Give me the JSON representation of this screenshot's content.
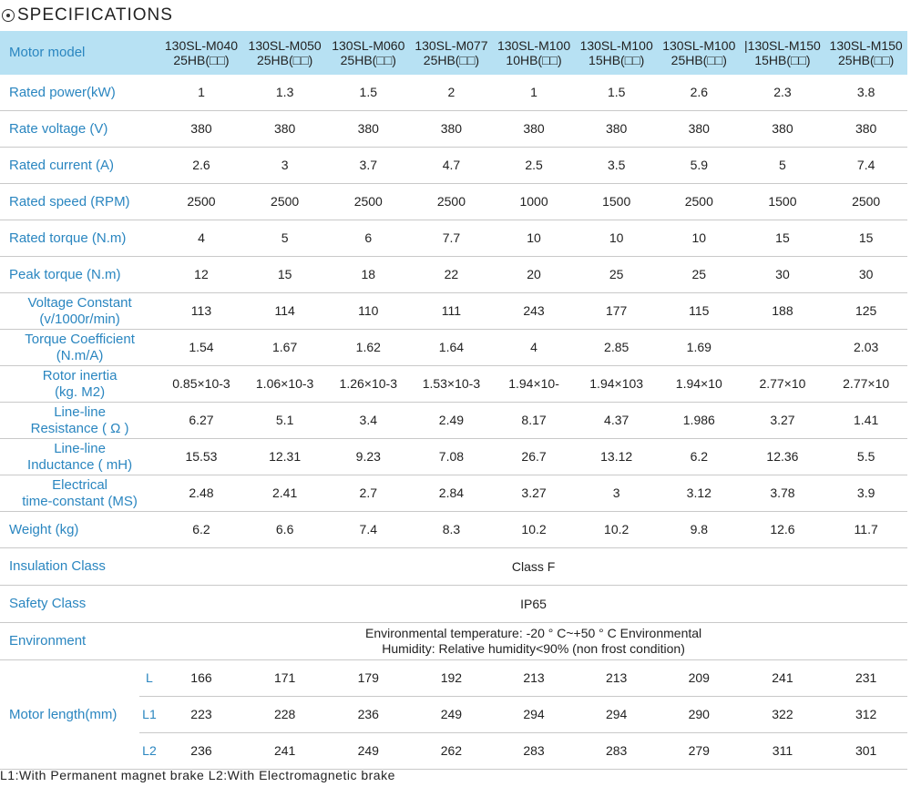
{
  "title": "SPECIFICATIONS",
  "header": {
    "label": "Motor model",
    "models": [
      [
        "130SL-M040",
        "25HB(□□)"
      ],
      [
        "130SL-M050",
        "25HB(□□)"
      ],
      [
        "130SL-M060",
        "25HB(□□)"
      ],
      [
        "130SL-M077",
        "25HB(□□)"
      ],
      [
        "130SL-M100",
        "10HB(□□)"
      ],
      [
        "130SL-M100",
        "15HB(□□)"
      ],
      [
        "130SL-M100",
        "25HB(□□)"
      ],
      [
        "|130SL-M150",
        "15HB(□□)"
      ],
      [
        "130SL-M150",
        "25HB(□□)"
      ]
    ]
  },
  "rows": [
    {
      "label": [
        "Rated power(kW)"
      ],
      "values": [
        "1",
        "1.3",
        "1.5",
        "2",
        "1",
        "1.5",
        "2.6",
        "2.3",
        "3.8"
      ]
    },
    {
      "label": [
        "Rate voltage (V)"
      ],
      "values": [
        "380",
        "380",
        "380",
        "380",
        "380",
        "380",
        "380",
        "380",
        "380"
      ]
    },
    {
      "label": [
        "Rated current (A)"
      ],
      "values": [
        "2.6",
        "3",
        "3.7",
        "4.7",
        "2.5",
        "3.5",
        "5.9",
        "5",
        "7.4"
      ]
    },
    {
      "label": [
        "Rated speed (RPM)"
      ],
      "values": [
        "2500",
        "2500",
        "2500",
        "2500",
        "1000",
        "1500",
        "2500",
        "1500",
        "2500"
      ]
    },
    {
      "label": [
        "Rated torque (N.m)"
      ],
      "values": [
        "4",
        "5",
        "6",
        "7.7",
        "10",
        "10",
        "10",
        "15",
        "15"
      ]
    },
    {
      "label": [
        "Peak torque (N.m)"
      ],
      "values": [
        "12",
        "15",
        "18",
        "22",
        "20",
        "25",
        "25",
        "30",
        "30"
      ]
    },
    {
      "label": [
        "Voltage Constant",
        "(v/1000r/min)"
      ],
      "values": [
        "113",
        "114",
        "110",
        "111",
        "243",
        "177",
        "115",
        "188",
        "125"
      ]
    },
    {
      "label": [
        "Torque Coefficient",
        "(N.m/A)"
      ],
      "values": [
        "1.54",
        "1.67",
        "1.62",
        "1.64",
        "4",
        "2.85",
        "1.69",
        "",
        "2.03"
      ]
    },
    {
      "label": [
        "Rotor inertia",
        "(kg. M2)"
      ],
      "values": [
        "0.85×10-3",
        "1.06×10-3",
        "1.26×10-3",
        "1.53×10-3",
        "1.94×10-",
        "1.94×103",
        "1.94×10",
        "2.77×10",
        "2.77×10"
      ]
    },
    {
      "label": [
        "Line-line",
        "Resistance ( Ω )"
      ],
      "values": [
        "6.27",
        "5.1",
        "3.4",
        "2.49",
        "8.17",
        "4.37",
        "1.986",
        "3.27",
        "1.41"
      ]
    },
    {
      "label": [
        "Line-line",
        "Inductance ( mH)"
      ],
      "values": [
        "15.53",
        "12.31",
        "9.23",
        "7.08",
        "26.7",
        "13.12",
        "6.2",
        "12.36",
        "5.5"
      ]
    },
    {
      "label": [
        "Electrical",
        "time-constant (MS)"
      ],
      "values": [
        "2.48",
        "2.41",
        "2.7",
        "2.84",
        "3.27",
        "3",
        "3.12",
        "3.78",
        "3.9"
      ]
    },
    {
      "label": [
        "Weight (kg)"
      ],
      "values": [
        "6.2",
        "6.6",
        "7.4",
        "8.3",
        "10.2",
        "10.2",
        "9.8",
        "12.6",
        "11.7"
      ]
    }
  ],
  "insulation": {
    "label": "Insulation Class",
    "value": "Class F"
  },
  "safety": {
    "label": "Safety Class",
    "value": "IP65"
  },
  "environment": {
    "label": "Environment",
    "line1": "Environmental temperature: -20 ° C~+50 ° C Environmental",
    "line2": "Humidity: Relative humidity<90% (non frost condition)"
  },
  "motor_length": {
    "label": "Motor length(mm)",
    "rows": [
      {
        "sub": "L",
        "values": [
          "166",
          "171",
          "179",
          "192",
          "213",
          "213",
          "209",
          "241",
          "231"
        ]
      },
      {
        "sub": "L1",
        "values": [
          "223",
          "228",
          "236",
          "249",
          "294",
          "294",
          "290",
          "322",
          "312"
        ]
      },
      {
        "sub": "L2",
        "values": [
          "236",
          "241",
          "249",
          "262",
          "283",
          "283",
          "279",
          "311",
          "301"
        ]
      }
    ]
  },
  "footnote": "L1:With Permanent magnet brake  L2:With Electromagnetic brake"
}
